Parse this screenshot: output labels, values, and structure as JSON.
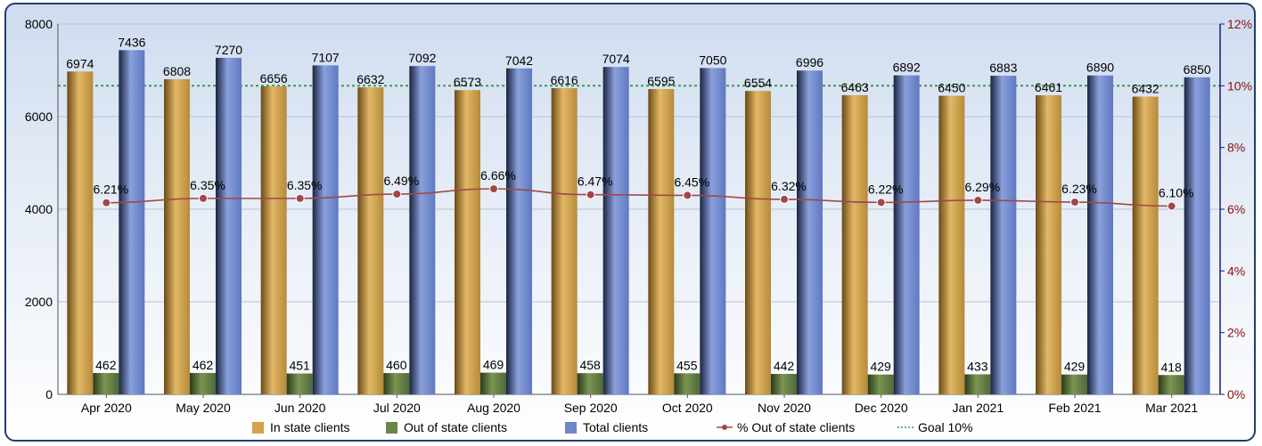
{
  "chart_data": {
    "type": "bar",
    "categories": [
      "Apr 2020",
      "May 2020",
      "Jun 2020",
      "Jul 2020",
      "Aug 2020",
      "Sep 2020",
      "Oct 2020",
      "Nov 2020",
      "Dec 2020",
      "Jan 2021",
      "Feb 2021",
      "Mar 2021"
    ],
    "series": [
      {
        "name": "In state clients",
        "axis": "left",
        "type": "bar",
        "color": "#d3a24a",
        "values": [
          6974,
          6808,
          6656,
          6632,
          6573,
          6616,
          6595,
          6554,
          6463,
          6450,
          6461,
          6432
        ]
      },
      {
        "name": "Out of state clients",
        "axis": "left",
        "type": "bar",
        "color": "#5f7a3c",
        "values": [
          462,
          462,
          451,
          460,
          469,
          458,
          455,
          442,
          429,
          433,
          429,
          418
        ]
      },
      {
        "name": "Total clients",
        "axis": "left",
        "type": "bar",
        "color": "#6f86c7",
        "values": [
          7436,
          7270,
          7107,
          7092,
          7042,
          7074,
          7050,
          6996,
          6892,
          6883,
          6890,
          6850
        ]
      },
      {
        "name": "% Out of state clients",
        "axis": "right",
        "type": "line",
        "color": "#a04848",
        "values": [
          6.21,
          6.35,
          6.35,
          6.49,
          6.66,
          6.47,
          6.45,
          6.32,
          6.22,
          6.29,
          6.23,
          6.1
        ],
        "labels": [
          "6.21%",
          "6.35%",
          "6.35%",
          "6.49%",
          "6.66%",
          "6.47%",
          "6.45%",
          "6.32%",
          "6.22%",
          "6.29%",
          "6.23%",
          "6.10%"
        ]
      },
      {
        "name": "Goal 10%",
        "axis": "right",
        "type": "reference-line",
        "color": "#2e9a3c",
        "value": 10
      }
    ],
    "y_left": {
      "min": 0,
      "max": 8000,
      "ticks": [
        "0",
        "2000",
        "4000",
        "6000",
        "8000"
      ]
    },
    "y_right": {
      "min": 0,
      "max": 12,
      "ticks": [
        "0%",
        "2%",
        "4%",
        "6%",
        "8%",
        "10%",
        "12%"
      ]
    },
    "grid": true,
    "legend": "bottom"
  }
}
